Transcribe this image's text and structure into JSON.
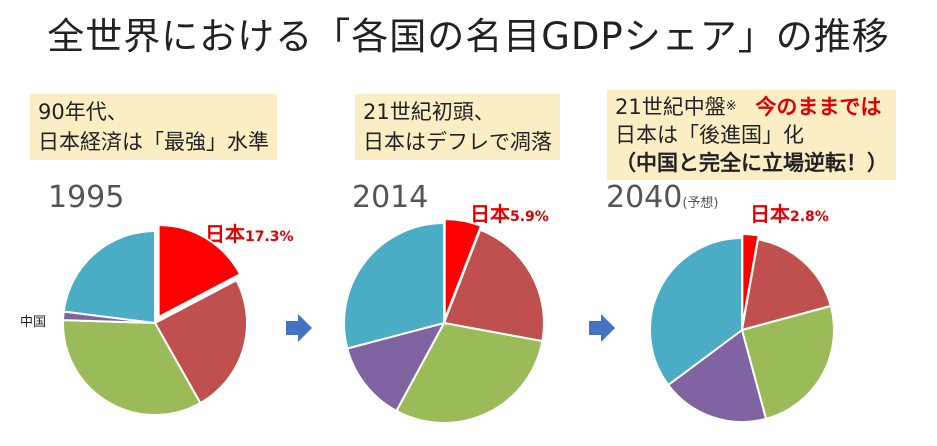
{
  "title": "全世界における「各国の名目GDPシェア」の推移",
  "notes": [
    {
      "line1": "90年代、",
      "line2": "日本経済は「最強」水準"
    },
    {
      "line1": "21世紀初頭、",
      "line2": "日本はデフレで凋落"
    },
    {
      "line1a": "21世紀中盤",
      "mark": "※",
      "line1b": "今のままでは",
      "line2": "日本は「後進国」化",
      "line3": "（中国と完全に立場逆転！）"
    }
  ],
  "colors": {
    "japan": "#ff0000",
    "red2": "#c0504d",
    "green": "#9bbb59",
    "purple": "#8064a2",
    "blue": "#4bacc6",
    "arrow": "#4472c4"
  },
  "chart_data": [
    {
      "type": "pie",
      "title": "1995",
      "japan_label": "日本",
      "japan_value_label": "17.3%",
      "china_label": "中国",
      "values": [
        17.3,
        24.5,
        33.7,
        1.5,
        23.0
      ],
      "colors": [
        "#ff0000",
        "#c0504d",
        "#9bbb59",
        "#8064a2",
        "#4bacc6"
      ]
    },
    {
      "type": "pie",
      "title": "2014",
      "japan_label": "日本",
      "japan_value_label": "5.9%",
      "values": [
        5.9,
        22.0,
        30.0,
        13.0,
        29.1
      ],
      "colors": [
        "#ff0000",
        "#c0504d",
        "#9bbb59",
        "#8064a2",
        "#4bacc6"
      ]
    },
    {
      "type": "pie",
      "title": "2040",
      "title_note": "(予想)",
      "japan_label": "日本",
      "japan_value_label": "2.8%",
      "values": [
        2.8,
        18.0,
        25.0,
        19.0,
        35.2
      ],
      "colors": [
        "#ff0000",
        "#c0504d",
        "#9bbb59",
        "#8064a2",
        "#4bacc6"
      ]
    }
  ]
}
